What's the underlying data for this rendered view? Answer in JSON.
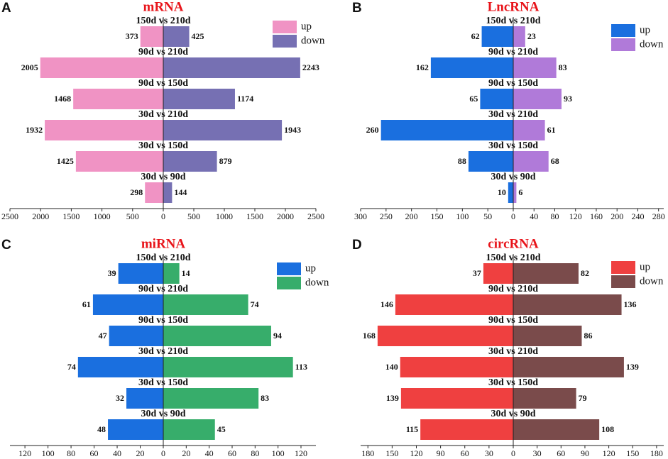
{
  "chart_data": [
    {
      "panel": "A",
      "type": "bar",
      "title": "mRNA",
      "categories": [
        "150d vs 210d",
        "90d vs 210d",
        "90d vs 150d",
        "30d vs 210d",
        "30d vs 150d",
        "30d vs 90d"
      ],
      "series": [
        {
          "name": "up",
          "color": "#f093c4",
          "side": "left",
          "values": [
            373,
            2005,
            1468,
            1932,
            1425,
            298
          ]
        },
        {
          "name": "down",
          "color": "#7670b3",
          "side": "right",
          "values": [
            425,
            2243,
            1174,
            1943,
            879,
            144
          ]
        }
      ],
      "xlim_left": [
        0,
        2500
      ],
      "xticks_left": [
        2500,
        2000,
        1500,
        1000,
        500
      ],
      "xlim_right": [
        0,
        2500
      ],
      "xticks_right": [
        0,
        500,
        1000,
        1500,
        2000,
        2500
      ]
    },
    {
      "panel": "B",
      "type": "bar",
      "title": "LncRNA",
      "categories": [
        "150d vs 210d",
        "90d vs 210d",
        "90d vs 150d",
        "30d vs 210d",
        "30d vs 150d",
        "30d vs 90d"
      ],
      "series": [
        {
          "name": "up",
          "color": "#1a6fdf",
          "side": "left",
          "values": [
            62,
            162,
            65,
            260,
            88,
            10
          ]
        },
        {
          "name": "down",
          "color": "#b07ad9",
          "side": "right",
          "values": [
            23,
            83,
            93,
            61,
            68,
            6
          ]
        }
      ],
      "xlim_left": [
        0,
        300
      ],
      "xticks_left": [
        300,
        250,
        200,
        150,
        100,
        50
      ],
      "xlim_right": [
        0,
        290
      ],
      "xticks_right": [
        0,
        40,
        80,
        120,
        160,
        200,
        240,
        280
      ]
    },
    {
      "panel": "C",
      "type": "bar",
      "title": "miRNA",
      "categories": [
        "150d vs 210d",
        "90d vs 210d",
        "90d vs 150d",
        "30d vs 210d",
        "30d vs 150d",
        "30d vs 90d"
      ],
      "series": [
        {
          "name": "up",
          "color": "#1a6fdf",
          "side": "left",
          "values": [
            39,
            61,
            47,
            74,
            32,
            48
          ]
        },
        {
          "name": "down",
          "color": "#37ad6b",
          "side": "right",
          "values": [
            14,
            74,
            94,
            113,
            83,
            45
          ]
        }
      ],
      "xlim_left": [
        0,
        133
      ],
      "xticks_left": [
        120,
        100,
        80,
        60,
        40,
        20
      ],
      "xlim_right": [
        0,
        133
      ],
      "xticks_right": [
        0,
        20,
        40,
        60,
        80,
        100,
        120
      ]
    },
    {
      "panel": "D",
      "type": "bar",
      "title": "circRNA",
      "categories": [
        "150d vs 210d",
        "90d vs 210d",
        "90d vs 150d",
        "30d vs 210d",
        "30d vs 150d",
        "30d vs 90d"
      ],
      "series": [
        {
          "name": "up",
          "color": "#ef4040",
          "side": "left",
          "values": [
            37,
            146,
            168,
            140,
            139,
            115
          ]
        },
        {
          "name": "down",
          "color": "#7a4b4b",
          "side": "right",
          "values": [
            82,
            136,
            86,
            139,
            79,
            108
          ]
        }
      ],
      "xlim_left": [
        0,
        189
      ],
      "xticks_left": [
        180,
        150,
        120,
        90,
        60,
        30
      ],
      "xlim_right": [
        0,
        189
      ],
      "xticks_right": [
        0,
        30,
        60,
        90,
        120,
        150,
        180
      ]
    }
  ]
}
